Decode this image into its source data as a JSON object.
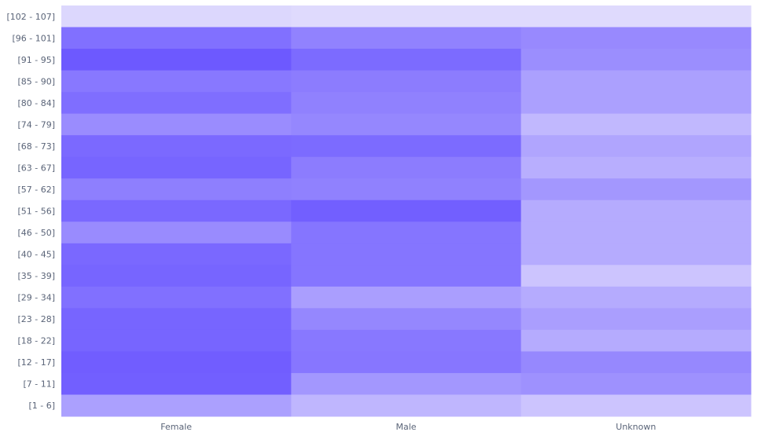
{
  "chart_data": {
    "type": "heatmap",
    "x_categories": [
      "Female",
      "Male",
      "Unknown"
    ],
    "y_categories": [
      "[102 - 107]",
      "[96 - 101]",
      "[91 - 95]",
      "[85 - 90]",
      "[80 - 84]",
      "[74 - 79]",
      "[68 - 73]",
      "[63 - 67]",
      "[57 - 62]",
      "[51 - 56]",
      "[46 - 50]",
      "[40 - 45]",
      "[35 - 39]",
      "[29 - 34]",
      "[23 - 28]",
      "[18 - 22]",
      "[12 - 17]",
      "[7 - 11]",
      "[1 - 6]"
    ],
    "values": [
      [
        0.12,
        0.1,
        0.1
      ],
      [
        0.82,
        0.7,
        0.65
      ],
      [
        0.98,
        0.86,
        0.62
      ],
      [
        0.77,
        0.74,
        0.5
      ],
      [
        0.84,
        0.71,
        0.5
      ],
      [
        0.63,
        0.67,
        0.33
      ],
      [
        0.87,
        0.86,
        0.46
      ],
      [
        0.9,
        0.74,
        0.4
      ],
      [
        0.72,
        0.71,
        0.56
      ],
      [
        0.88,
        0.94,
        0.42
      ],
      [
        0.64,
        0.79,
        0.42
      ],
      [
        0.88,
        0.79,
        0.42
      ],
      [
        0.9,
        0.79,
        0.25
      ],
      [
        0.82,
        0.51,
        0.42
      ],
      [
        0.9,
        0.67,
        0.51
      ],
      [
        0.9,
        0.77,
        0.42
      ],
      [
        0.95,
        0.78,
        0.66
      ],
      [
        0.94,
        0.56,
        0.6
      ],
      [
        0.5,
        0.35,
        0.25
      ]
    ],
    "color_low": "#ece9fd",
    "color_high": "#6a56ff",
    "colorbar": false,
    "grid": false
  }
}
